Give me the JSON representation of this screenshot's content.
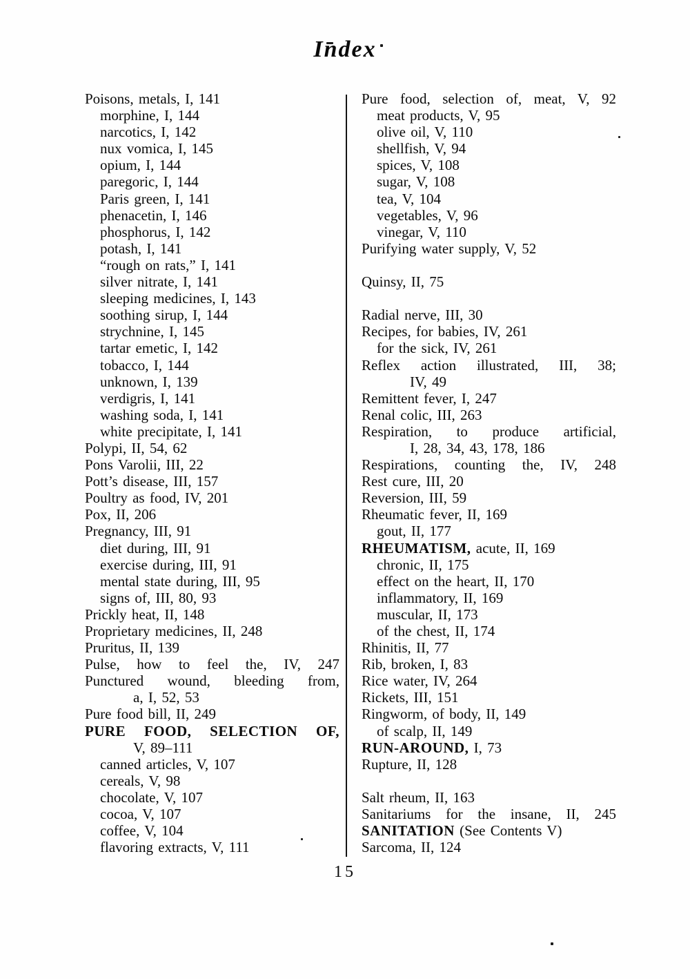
{
  "page": {
    "title": "Index",
    "page_number": "15"
  },
  "columns": {
    "left": [
      {
        "text": "Poisons, metals, I, 141",
        "indent": 0
      },
      {
        "text": "morphine, I, 144",
        "indent": 1
      },
      {
        "text": "narcotics, I, 142",
        "indent": 1
      },
      {
        "text": "nux vomica, I, 145",
        "indent": 1
      },
      {
        "text": "opium, I, 144",
        "indent": 1
      },
      {
        "text": "paregoric, I, 144",
        "indent": 1
      },
      {
        "text": "Paris green, I, 141",
        "indent": 1
      },
      {
        "text": "phenacetin, I, 146",
        "indent": 1
      },
      {
        "text": "phosphorus, I, 142",
        "indent": 1
      },
      {
        "text": "potash, I, 141",
        "indent": 1
      },
      {
        "text": "“rough on rats,” I, 141",
        "indent": 1
      },
      {
        "text": "silver nitrate, I, 141",
        "indent": 1
      },
      {
        "text": "sleeping medicines, I, 143",
        "indent": 1
      },
      {
        "text": "soothing sirup, I, 144",
        "indent": 1
      },
      {
        "text": "strychnine, I, 145",
        "indent": 1
      },
      {
        "text": "tartar emetic, I, 142",
        "indent": 1
      },
      {
        "text": "tobacco, I, 144",
        "indent": 1
      },
      {
        "text": "unknown, I, 139",
        "indent": 1
      },
      {
        "text": "verdigris, I, 141",
        "indent": 1
      },
      {
        "text": "washing soda, I, 141",
        "indent": 1
      },
      {
        "text": "white precipitate, I, 141",
        "indent": 1
      },
      {
        "text": "Polypi, II, 54, 62",
        "indent": 0
      },
      {
        "text": "Pons Varolii, III, 22",
        "indent": 0
      },
      {
        "text": "Pott’s disease, III, 157",
        "indent": 0
      },
      {
        "text": "Poultry as food, IV, 201",
        "indent": 0
      },
      {
        "text": "Pox, II, 206",
        "indent": 0
      },
      {
        "text": "Pregnancy, III, 91",
        "indent": 0
      },
      {
        "text": "diet during, III, 91",
        "indent": 1
      },
      {
        "text": "exercise during, III, 91",
        "indent": 1
      },
      {
        "text": "mental state during, III, 95",
        "indent": 1
      },
      {
        "text": "signs of, III, 80, 93",
        "indent": 1
      },
      {
        "text": "Prickly heat, II, 148",
        "indent": 0
      },
      {
        "text": "Proprietary medicines, II, 248",
        "indent": 0
      },
      {
        "text": "Pruritus, II, 139",
        "indent": 0
      },
      {
        "text": "Pulse, how to feel the, IV, 247",
        "indent": 0,
        "justify": true
      },
      {
        "text": "Punctured wound, bleeding from,",
        "indent": 0,
        "justify": true
      },
      {
        "text": "a, I, 52, 53",
        "indent": 2
      },
      {
        "text": "Pure food bill, II, 249",
        "indent": 0
      },
      {
        "bold_text": "PURE FOOD, SELECTION OF,",
        "text": "",
        "indent": 0,
        "justify": true
      },
      {
        "text": "V, 89–111",
        "indent": 2
      },
      {
        "text": "canned articles, V, 107",
        "indent": 1
      },
      {
        "text": "cereals, V, 98",
        "indent": 1
      },
      {
        "text": "chocolate, V, 107",
        "indent": 1
      },
      {
        "text": "cocoa, V, 107",
        "indent": 1
      },
      {
        "text": "coffee, V, 104",
        "indent": 1
      },
      {
        "text": "flavoring extracts, V, 111",
        "indent": 1
      }
    ],
    "right": [
      {
        "text": "Pure food, selection of, meat, V, 92",
        "indent": 0,
        "justify": true
      },
      {
        "text": "meat products, V, 95",
        "indent": 1
      },
      {
        "text": "olive oil, V, 110",
        "indent": 1
      },
      {
        "text": "shellfish, V, 94",
        "indent": 1
      },
      {
        "text": "spices, V, 108",
        "indent": 1
      },
      {
        "text": "sugar, V, 108",
        "indent": 1
      },
      {
        "text": "tea, V, 104",
        "indent": 1
      },
      {
        "text": "vegetables, V, 96",
        "indent": 1
      },
      {
        "text": "vinegar, V, 110",
        "indent": 1
      },
      {
        "text": "Purifying water supply, V, 52",
        "indent": 0
      },
      {
        "text": "",
        "indent": 0
      },
      {
        "text": "Quinsy, II, 75",
        "indent": 0
      },
      {
        "text": "",
        "indent": 0
      },
      {
        "text": "Radial nerve, III, 30",
        "indent": 0
      },
      {
        "text": "Recipes, for babies, IV, 261",
        "indent": 0
      },
      {
        "text": "for the sick, IV, 261",
        "indent": 1
      },
      {
        "text": "Reflex action illustrated, III, 38;",
        "indent": 0,
        "justify": true
      },
      {
        "text": "IV, 49",
        "indent": 2
      },
      {
        "text": "Remittent fever, I, 247",
        "indent": 0
      },
      {
        "text": "Renal colic, III, 263",
        "indent": 0
      },
      {
        "text": "Respiration, to produce artificial,",
        "indent": 0,
        "justify": true
      },
      {
        "text": "I, 28, 34, 43, 178, 186",
        "indent": 2
      },
      {
        "text": "Respirations, counting the, IV, 248",
        "indent": 0,
        "justify": true
      },
      {
        "text": "Rest cure, III, 20",
        "indent": 0
      },
      {
        "text": "Reversion, III, 59",
        "indent": 0
      },
      {
        "text": "Rheumatic fever, II, 169",
        "indent": 0
      },
      {
        "text": "gout, II, 177",
        "indent": 1
      },
      {
        "bold_text": "RHEUMATISM,",
        "text": "acute, II, 169",
        "indent": 0
      },
      {
        "text": "chronic, II, 175",
        "indent": 1
      },
      {
        "text": "effect on the heart, II, 170",
        "indent": 1
      },
      {
        "text": "inflammatory, II, 169",
        "indent": 1
      },
      {
        "text": "muscular, II, 173",
        "indent": 1
      },
      {
        "text": "of the chest, II, 174",
        "indent": 1
      },
      {
        "text": "Rhinitis, II, 77",
        "indent": 0
      },
      {
        "text": "Rib, broken, I, 83",
        "indent": 0
      },
      {
        "text": "Rice water, IV, 264",
        "indent": 0
      },
      {
        "text": "Rickets, III, 151",
        "indent": 0
      },
      {
        "text": "Ringworm, of body, II, 149",
        "indent": 0
      },
      {
        "text": "of scalp, II, 149",
        "indent": 1
      },
      {
        "bold_text": "RUN-AROUND,",
        "text": "I, 73",
        "indent": 0
      },
      {
        "text": "Rupture, II, 128",
        "indent": 0
      },
      {
        "text": "",
        "indent": 0
      },
      {
        "text": "Salt rheum, II, 163",
        "indent": 0
      },
      {
        "text": "Sanitariums for the insane, II, 245",
        "indent": 0,
        "justify": true
      },
      {
        "bold_text": "SANITATION",
        "text": "(See Contents V)",
        "indent": 0
      },
      {
        "text": "Sarcoma, II, 124",
        "indent": 0
      }
    ]
  }
}
